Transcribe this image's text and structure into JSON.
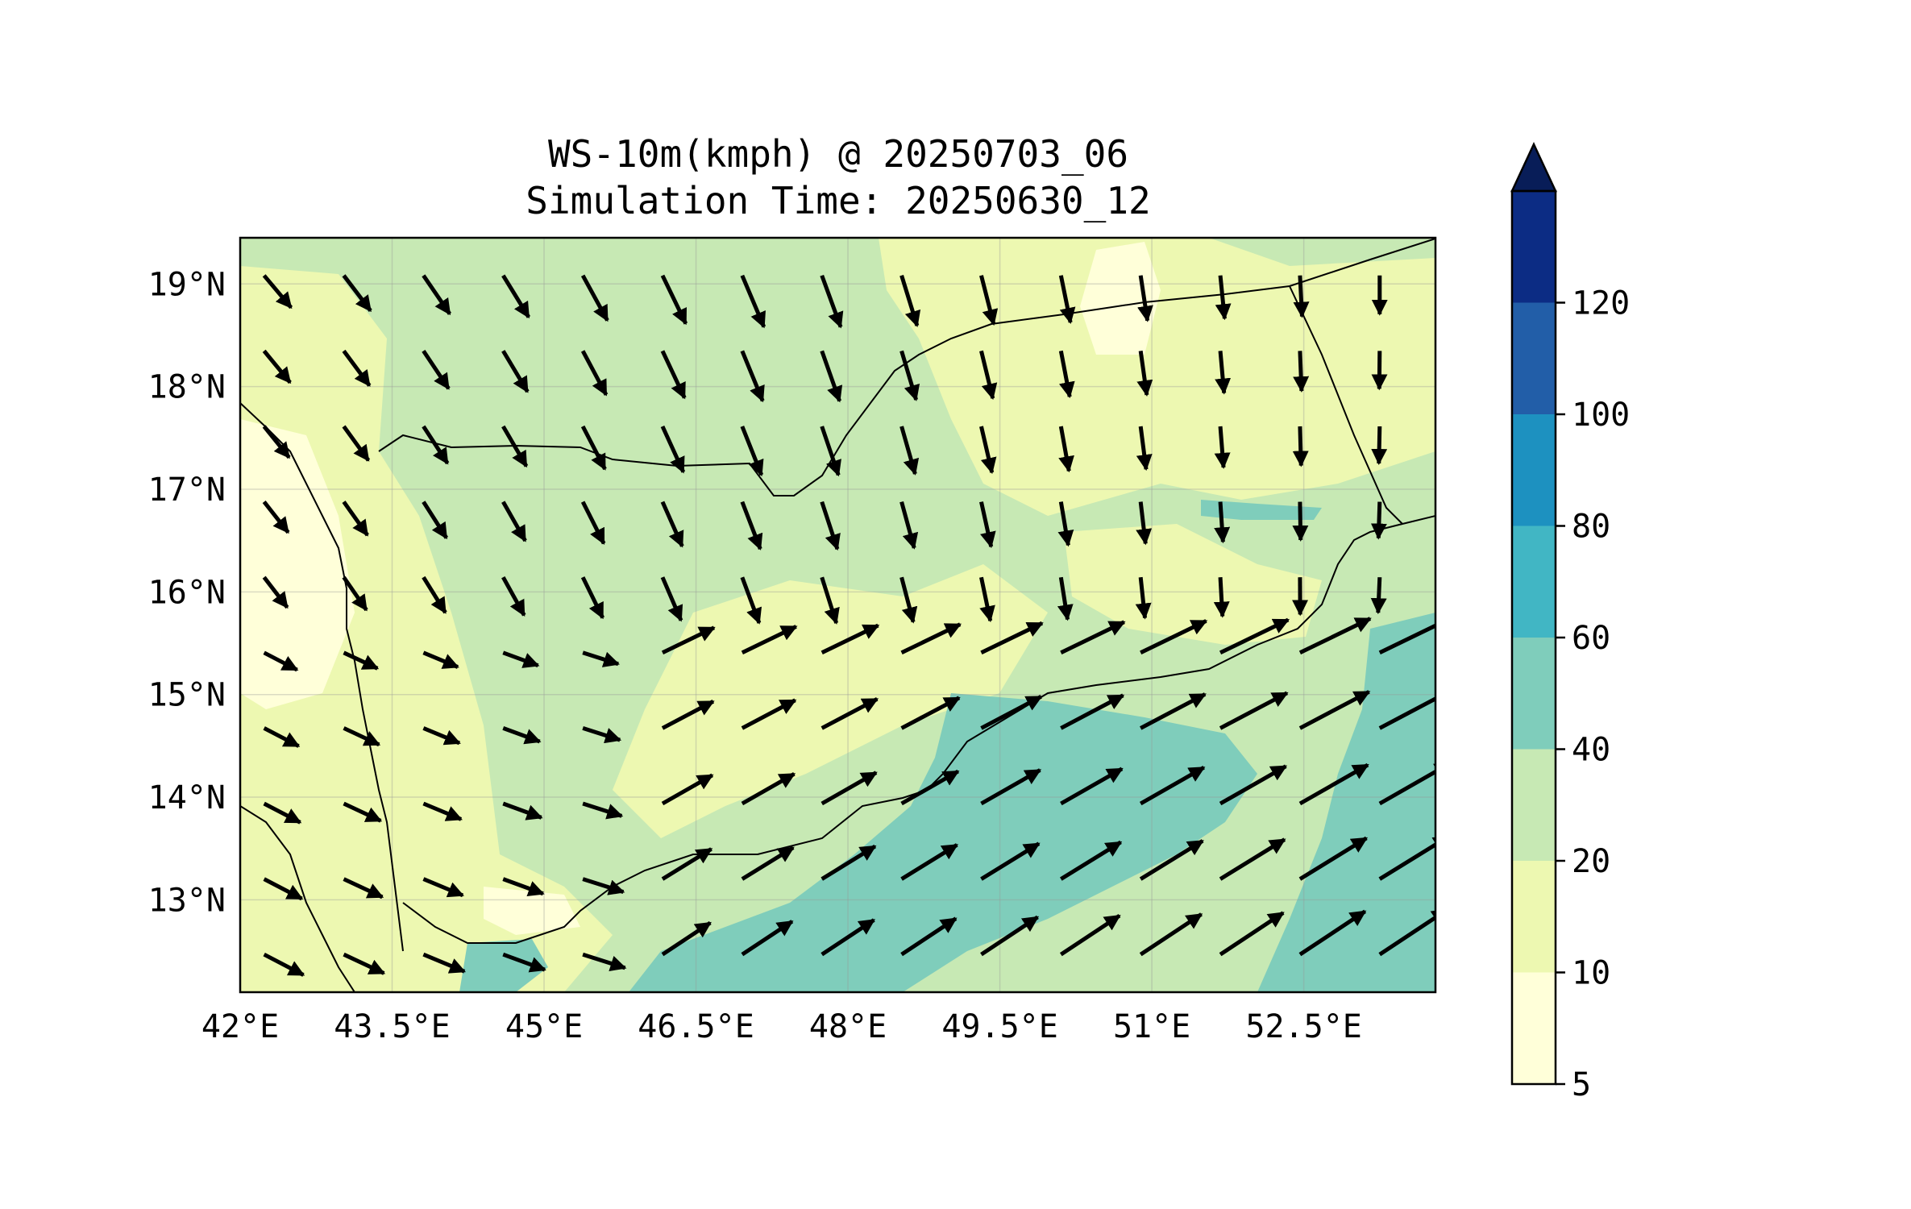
{
  "title_line1": "WS-10m(kmph) @ 20250703_06",
  "title_line2": "Simulation Time: 20250630_12",
  "map": {
    "lon_range": [
      42.0,
      53.8
    ],
    "lat_range": [
      12.1,
      19.45
    ],
    "x_ticks": [
      42,
      43.5,
      45,
      46.5,
      48,
      49.5,
      51,
      52.5
    ],
    "x_tick_labels": [
      "42°E",
      "43.5°E",
      "45°E",
      "46.5°E",
      "48°E",
      "49.5°E",
      "51°E",
      "52.5°E"
    ],
    "y_ticks": [
      13,
      14,
      15,
      16,
      17,
      18,
      19
    ],
    "y_tick_labels": [
      "13°N",
      "14°N",
      "15°N",
      "16°N",
      "17°N",
      "18°N",
      "19°N"
    ],
    "grid": true
  },
  "colorbar": {
    "levels": [
      5,
      10,
      20,
      40,
      60,
      80,
      100,
      120
    ],
    "tick_labels": [
      "5",
      "10",
      "20",
      "40",
      "60",
      "80",
      "100",
      "120"
    ],
    "colors": [
      "#ffffd9",
      "#edf8b1",
      "#c7e9b4",
      "#7fcdbb",
      "#41b6c4",
      "#1d91c0",
      "#225ea8",
      "#0c2c84"
    ],
    "extend": "max",
    "extend_color": "#081d58"
  }
}
